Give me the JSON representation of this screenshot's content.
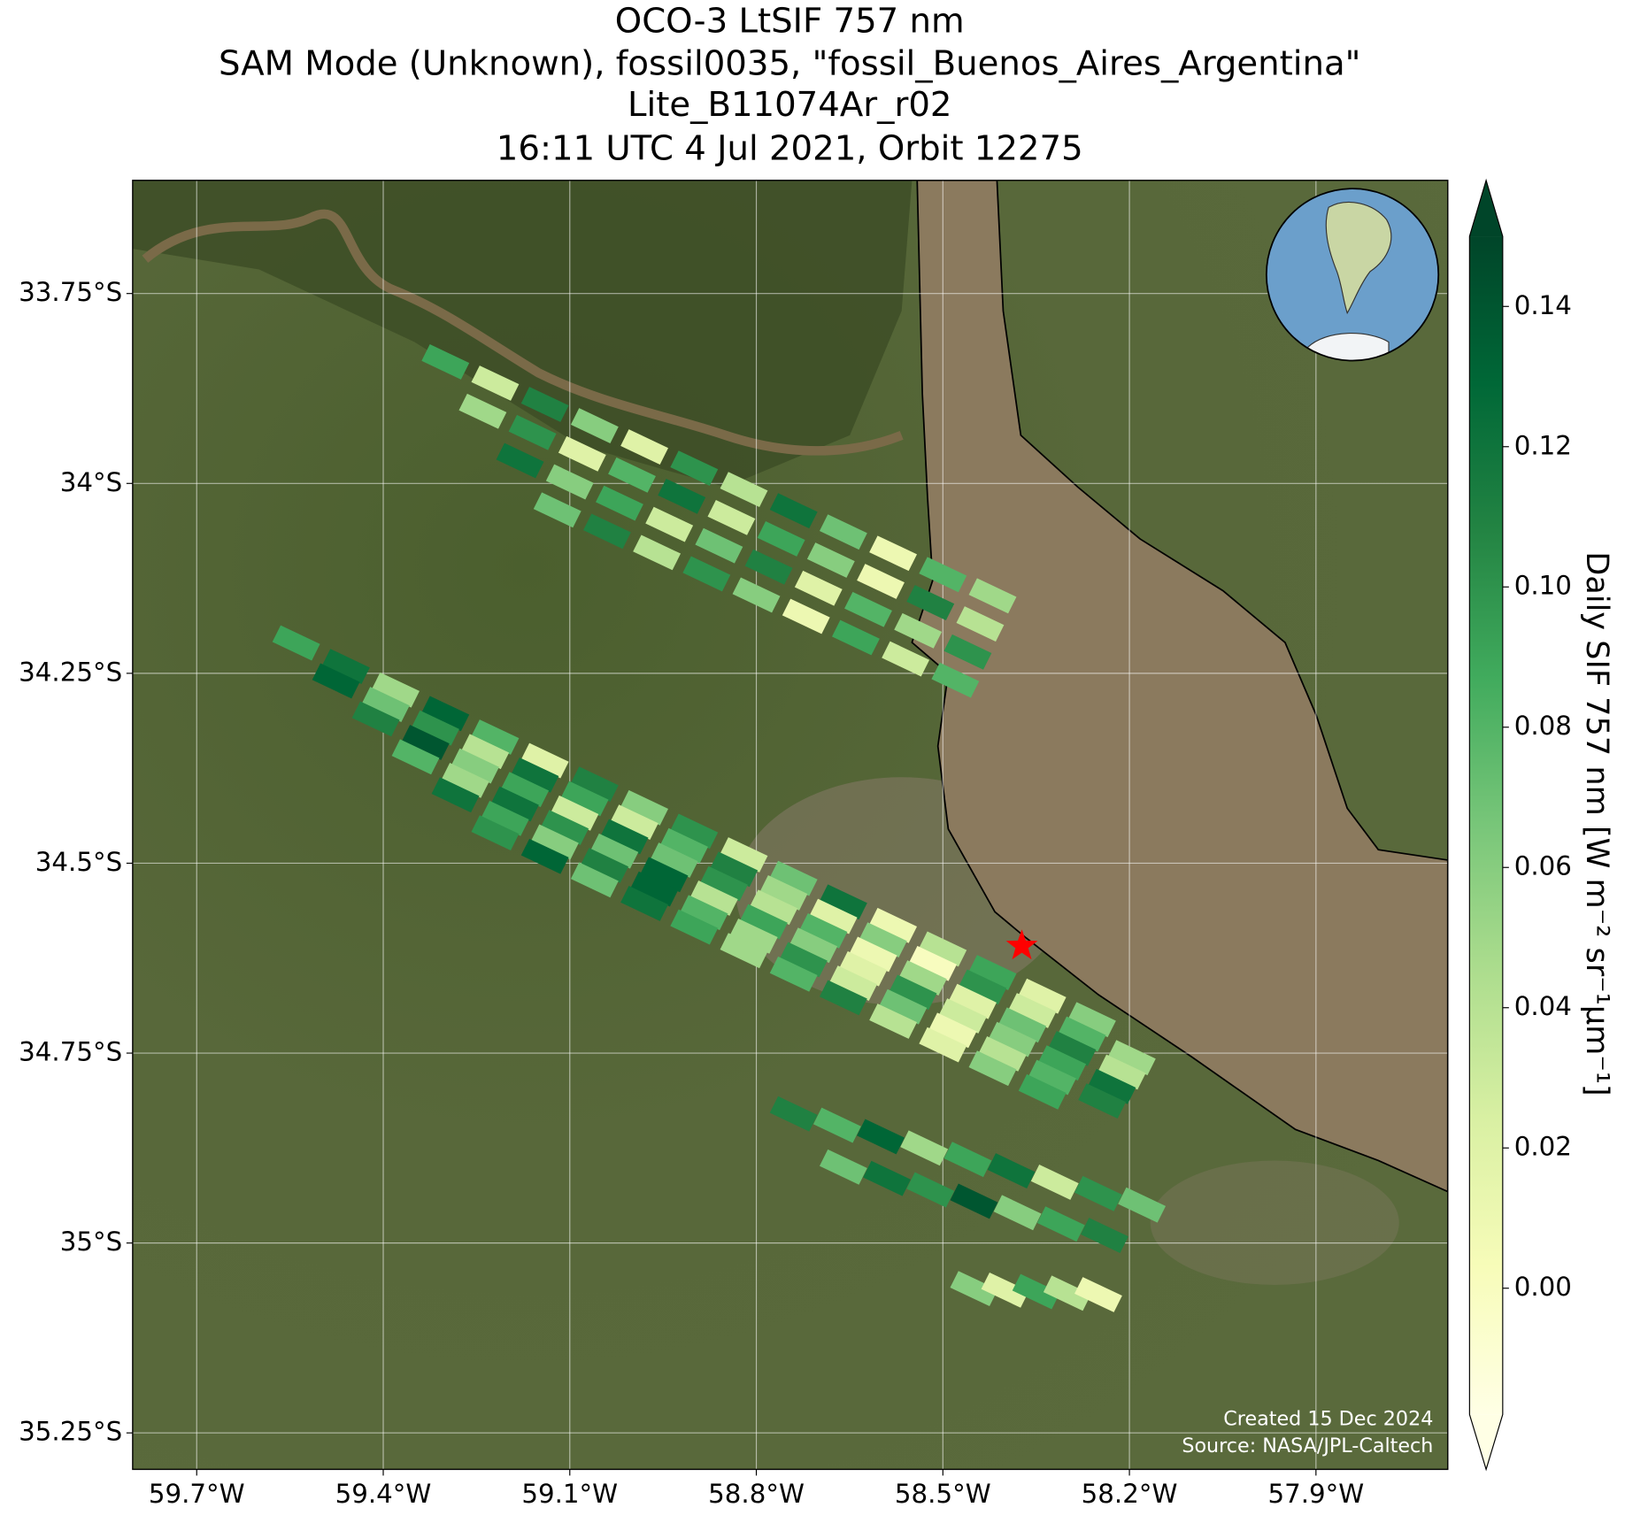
{
  "chart_data": {
    "type": "map",
    "title": [
      "OCO-3 LtSIF 757 nm",
      "SAM Mode (Unknown), fossil0035, \"fossil_Buenos_Aires_Argentina\"",
      "Lite_B11074Ar_r02",
      "16:11 UTC 4 Jul 2021, Orbit 12275"
    ],
    "xlim": [
      -59.803,
      -57.688
    ],
    "ylim": [
      -35.298,
      -33.601
    ],
    "xticks": [
      {
        "value": -59.7,
        "label": "59.7°W"
      },
      {
        "value": -59.4,
        "label": "59.4°W"
      },
      {
        "value": -59.1,
        "label": "59.1°W"
      },
      {
        "value": -58.8,
        "label": "58.8°W"
      },
      {
        "value": -58.5,
        "label": "58.5°W"
      },
      {
        "value": -58.2,
        "label": "58.2°W"
      },
      {
        "value": -57.9,
        "label": "57.9°W"
      }
    ],
    "yticks": [
      {
        "value": -33.75,
        "label": "33.75°S"
      },
      {
        "value": -34,
        "label": "34°S"
      },
      {
        "value": -34.25,
        "label": "34.25°S"
      },
      {
        "value": -34.5,
        "label": "34.5°S"
      },
      {
        "value": -34.75,
        "label": "34.75°S"
      },
      {
        "value": -35,
        "label": "35°S"
      },
      {
        "value": -35.25,
        "label": "35.25°S"
      }
    ],
    "grid": true,
    "colormap": "YlGn",
    "clim": [
      -0.018,
      0.15
    ],
    "colorbar_label": "Daily SIF 757 nm [W m⁻² sr⁻¹μm⁻¹]",
    "colorbar_ticks": [
      {
        "value": 0,
        "label": "0.00"
      },
      {
        "value": 0.02,
        "label": "0.02"
      },
      {
        "value": 0.04,
        "label": "0.04"
      },
      {
        "value": 0.06,
        "label": "0.06"
      },
      {
        "value": 0.08,
        "label": "0.08"
      },
      {
        "value": 0.1,
        "label": "0.10"
      },
      {
        "value": 0.12,
        "label": "0.12"
      },
      {
        "value": 0.14,
        "label": "0.14"
      }
    ],
    "target": {
      "lon": -58.373,
      "lat": -34.609,
      "color": "#ff0000"
    },
    "annotations": [
      "Created 15 Dec 2024",
      "Source: NASA/JPL-Caltech"
    ],
    "strips": [
      {
        "lon": [
          -59.54,
          -59.46,
          -59.38,
          -59.3,
          -59.22,
          -59.14,
          -59.06,
          -58.98,
          -58.9,
          -58.82,
          -58.74,
          -58.66,
          -58.58,
          -58.5,
          -58.42,
          -58.34,
          -58.26
        ],
        "lat": [
          -34.21,
          -34.241,
          -34.272,
          -34.303,
          -34.334,
          -34.365,
          -34.396,
          -34.427,
          -34.458,
          -34.489,
          -34.52,
          -34.551,
          -34.582,
          -34.613,
          -34.644,
          -34.675,
          -34.706
        ],
        "values": [
          0.09,
          0.12,
          0.05,
          0.13,
          0.08,
          0.02,
          0.11,
          0.06,
          0.1,
          0.03,
          0.07,
          0.12,
          0.01,
          0.04,
          0.09,
          0.02,
          0.06
        ]
      },
      {
        "lon": [
          -59.476,
          -59.396,
          -59.316,
          -59.236,
          -59.156,
          -59.076,
          -58.996,
          -58.916,
          -58.836,
          -58.756,
          -58.676,
          -58.596,
          -58.516,
          -58.436,
          -58.356,
          -58.276,
          -58.196
        ],
        "lat": [
          -34.26,
          -34.291,
          -34.322,
          -34.353,
          -34.384,
          -34.415,
          -34.446,
          -34.477,
          -34.508,
          -34.539,
          -34.57,
          -34.601,
          -34.632,
          -34.663,
          -34.694,
          -34.725,
          -34.756
        ],
        "values": [
          0.13,
          0.07,
          0.1,
          0.04,
          0.12,
          0.09,
          0.03,
          0.08,
          0.11,
          0.05,
          0.02,
          0.06,
          0.0,
          0.1,
          0.03,
          0.08,
          0.05
        ]
      },
      {
        "lon": [
          -59.412,
          -59.332,
          -59.252,
          -59.172,
          -59.092,
          -59.012,
          -58.932,
          -58.852,
          -58.772,
          -58.692,
          -58.612,
          -58.532,
          -58.452,
          -58.372,
          -58.292,
          -58.212
        ],
        "lat": [
          -34.31,
          -34.341,
          -34.372,
          -34.403,
          -34.434,
          -34.465,
          -34.496,
          -34.527,
          -34.558,
          -34.589,
          -34.62,
          -34.651,
          -34.682,
          -34.713,
          -34.744,
          -34.775
        ],
        "values": [
          0.11,
          0.14,
          0.06,
          0.09,
          0.03,
          0.12,
          0.07,
          0.1,
          0.04,
          0.08,
          0.01,
          0.05,
          0.02,
          0.07,
          0.11,
          0.04
        ]
      },
      {
        "lon": [
          -59.348,
          -59.268,
          -59.188,
          -59.108,
          -59.028,
          -58.948,
          -58.868,
          -58.788,
          -58.708,
          -58.628,
          -58.548,
          -58.468,
          -58.388,
          -58.308,
          -58.228
        ],
        "lat": [
          -34.36,
          -34.391,
          -34.422,
          -34.453,
          -34.484,
          -34.515,
          -34.546,
          -34.577,
          -34.608,
          -34.639,
          -34.67,
          -34.701,
          -34.732,
          -34.763,
          -34.794
        ],
        "values": [
          0.08,
          0.05,
          0.12,
          0.1,
          0.07,
          0.13,
          0.04,
          0.09,
          0.06,
          0.02,
          0.1,
          0.03,
          0.06,
          0.09,
          0.12
        ]
      },
      {
        "lon": [
          -59.284,
          -59.204,
          -59.124,
          -59.044,
          -58.964,
          -58.884,
          -58.804,
          -58.724,
          -58.644,
          -58.564,
          -58.484,
          -58.404,
          -58.324,
          -58.244
        ],
        "lat": [
          -34.41,
          -34.441,
          -34.472,
          -34.503,
          -34.534,
          -34.565,
          -34.596,
          -34.627,
          -34.658,
          -34.689,
          -34.72,
          -34.751,
          -34.782,
          -34.813
        ],
        "values": [
          0.12,
          0.09,
          0.06,
          0.11,
          0.13,
          0.08,
          0.05,
          0.1,
          0.03,
          0.07,
          0.01,
          0.04,
          0.08,
          0.11
        ]
      },
      {
        "lon": [
          -59.22,
          -59.14,
          -59.06,
          -58.98,
          -58.9,
          -58.82,
          -58.74,
          -58.66,
          -58.58,
          -58.5,
          -58.42,
          -58.34
        ],
        "lat": [
          -34.46,
          -34.491,
          -34.522,
          -34.553,
          -34.584,
          -34.615,
          -34.646,
          -34.677,
          -34.708,
          -34.739,
          -34.77,
          -34.801
        ],
        "values": [
          0.1,
          0.13,
          0.07,
          0.12,
          0.09,
          0.05,
          0.08,
          0.11,
          0.04,
          0.02,
          0.06,
          0.09
        ]
      },
      {
        "lon": [
          -58.74,
          -58.67,
          -58.6,
          -58.53,
          -58.46,
          -58.39,
          -58.32,
          -58.25,
          -58.18
        ],
        "lat": [
          -34.83,
          -34.845,
          -34.86,
          -34.875,
          -34.89,
          -34.905,
          -34.92,
          -34.935,
          -34.95
        ],
        "values": [
          0.11,
          0.08,
          0.13,
          0.05,
          0.09,
          0.12,
          0.03,
          0.1,
          0.07
        ]
      },
      {
        "lon": [
          -58.66,
          -58.59,
          -58.52,
          -58.45,
          -58.38,
          -58.31,
          -58.24
        ],
        "lat": [
          -34.9,
          -34.915,
          -34.93,
          -34.945,
          -34.96,
          -34.975,
          -34.99
        ],
        "values": [
          0.07,
          0.12,
          0.1,
          0.14,
          0.06,
          0.09,
          0.11
        ]
      },
      {
        "lon": [
          -58.45,
          -58.4,
          -58.35,
          -58.3,
          -58.25
        ],
        "lat": [
          -35.06,
          -35.062,
          -35.064,
          -35.066,
          -35.068
        ],
        "values": [
          0.06,
          0.02,
          0.09,
          0.04,
          0.01
        ]
      },
      {
        "lon": [
          -59.3,
          -59.22,
          -59.14,
          -59.06,
          -58.98,
          -58.9,
          -58.82,
          -58.74,
          -58.66,
          -58.58,
          -58.5,
          -58.42
        ],
        "lat": [
          -33.84,
          -33.868,
          -33.896,
          -33.924,
          -33.952,
          -33.98,
          -34.008,
          -34.036,
          -34.064,
          -34.092,
          -34.12,
          -34.148
        ],
        "values": [
          0.09,
          0.03,
          0.11,
          0.06,
          0.02,
          0.1,
          0.04,
          0.12,
          0.07,
          0.01,
          0.08,
          0.05
        ]
      },
      {
        "lon": [
          -59.24,
          -59.16,
          -59.08,
          -59.0,
          -58.92,
          -58.84,
          -58.76,
          -58.68,
          -58.6,
          -58.52,
          -58.44
        ],
        "lat": [
          -33.905,
          -33.933,
          -33.961,
          -33.989,
          -34.017,
          -34.045,
          -34.073,
          -34.101,
          -34.129,
          -34.157,
          -34.185
        ],
        "values": [
          0.05,
          0.1,
          0.02,
          0.08,
          0.12,
          0.03,
          0.09,
          0.06,
          0.01,
          0.11,
          0.04
        ]
      },
      {
        "lon": [
          -59.18,
          -59.1,
          -59.02,
          -58.94,
          -58.86,
          -58.78,
          -58.7,
          -58.62,
          -58.54,
          -58.46
        ],
        "lat": [
          -33.97,
          -33.998,
          -34.026,
          -34.054,
          -34.082,
          -34.11,
          -34.138,
          -34.166,
          -34.194,
          -34.222
        ],
        "values": [
          0.12,
          0.06,
          0.09,
          0.03,
          0.07,
          0.11,
          0.02,
          0.08,
          0.05,
          0.1
        ]
      },
      {
        "lon": [
          -59.12,
          -59.04,
          -58.96,
          -58.88,
          -58.8,
          -58.72,
          -58.64,
          -58.56,
          -58.48
        ],
        "lat": [
          -34.035,
          -34.063,
          -34.091,
          -34.119,
          -34.147,
          -34.175,
          -34.203,
          -34.231,
          -34.259
        ],
        "values": [
          0.07,
          0.11,
          0.04,
          0.1,
          0.06,
          0.01,
          0.09,
          0.03,
          0.08
        ]
      }
    ]
  }
}
